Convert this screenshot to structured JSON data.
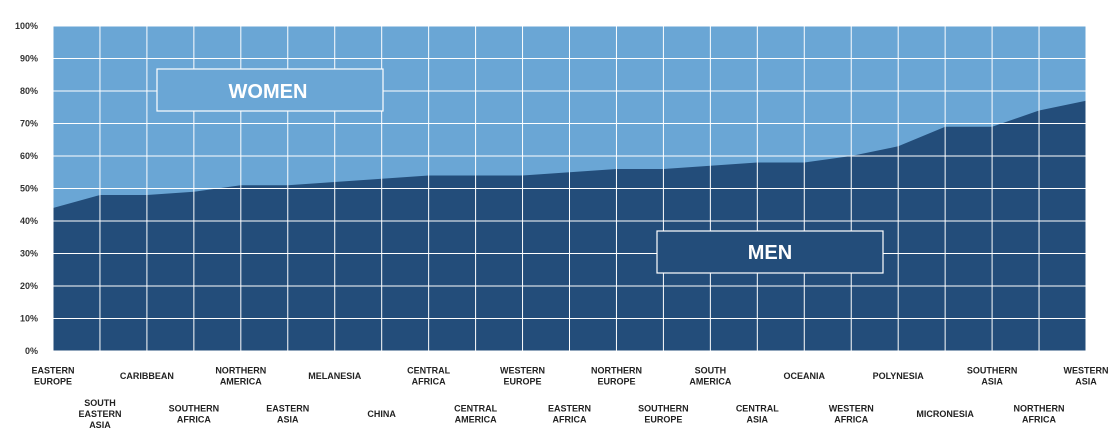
{
  "chart_data": {
    "type": "area",
    "stacked": true,
    "percent": true,
    "categories": [
      "EASTERN EUROPE",
      "SOUTH EASTERN ASIA",
      "CARIBBEAN",
      "SOUTHERN AFRICA",
      "NORTHERN AMERICA",
      "EASTERN ASIA",
      "MELANESIA",
      "CHINA",
      "CENTRAL AFRICA",
      "CENTRAL AMERICA",
      "WESTERN EUROPE",
      "EASTERN AFRICA",
      "NORTHERN EUROPE",
      "SOUTHERN EUROPE",
      "SOUTH AMERICA",
      "CENTRAL ASIA",
      "OCEANIA",
      "WESTERN AFRICA",
      "POLYNESIA",
      "MICRONESIA",
      "SOUTHERN ASIA",
      "NORTHERN AFRICA",
      "WESTERN ASIA"
    ],
    "series": [
      {
        "name": "MEN",
        "values": [
          44,
          48,
          48,
          49,
          51,
          51,
          52,
          53,
          54,
          54,
          54,
          55,
          56,
          56,
          57,
          58,
          58,
          60,
          63,
          69,
          69,
          74,
          77
        ]
      },
      {
        "name": "WOMEN",
        "values": [
          56,
          52,
          52,
          51,
          49,
          49,
          48,
          47,
          46,
          46,
          46,
          45,
          44,
          44,
          43,
          42,
          42,
          40,
          37,
          31,
          31,
          26,
          23
        ]
      }
    ],
    "yticks": [
      "0%",
      "10%",
      "20%",
      "30%",
      "40%",
      "50%",
      "60%",
      "70%",
      "80%",
      "90%",
      "100%"
    ],
    "ylim": [
      0,
      100
    ],
    "grid": true,
    "labels": {
      "women": "WOMEN",
      "men": "MEN"
    },
    "colors": {
      "men": "#234d7a",
      "women": "#6aa6d5",
      "grid": "#ffffff"
    }
  }
}
